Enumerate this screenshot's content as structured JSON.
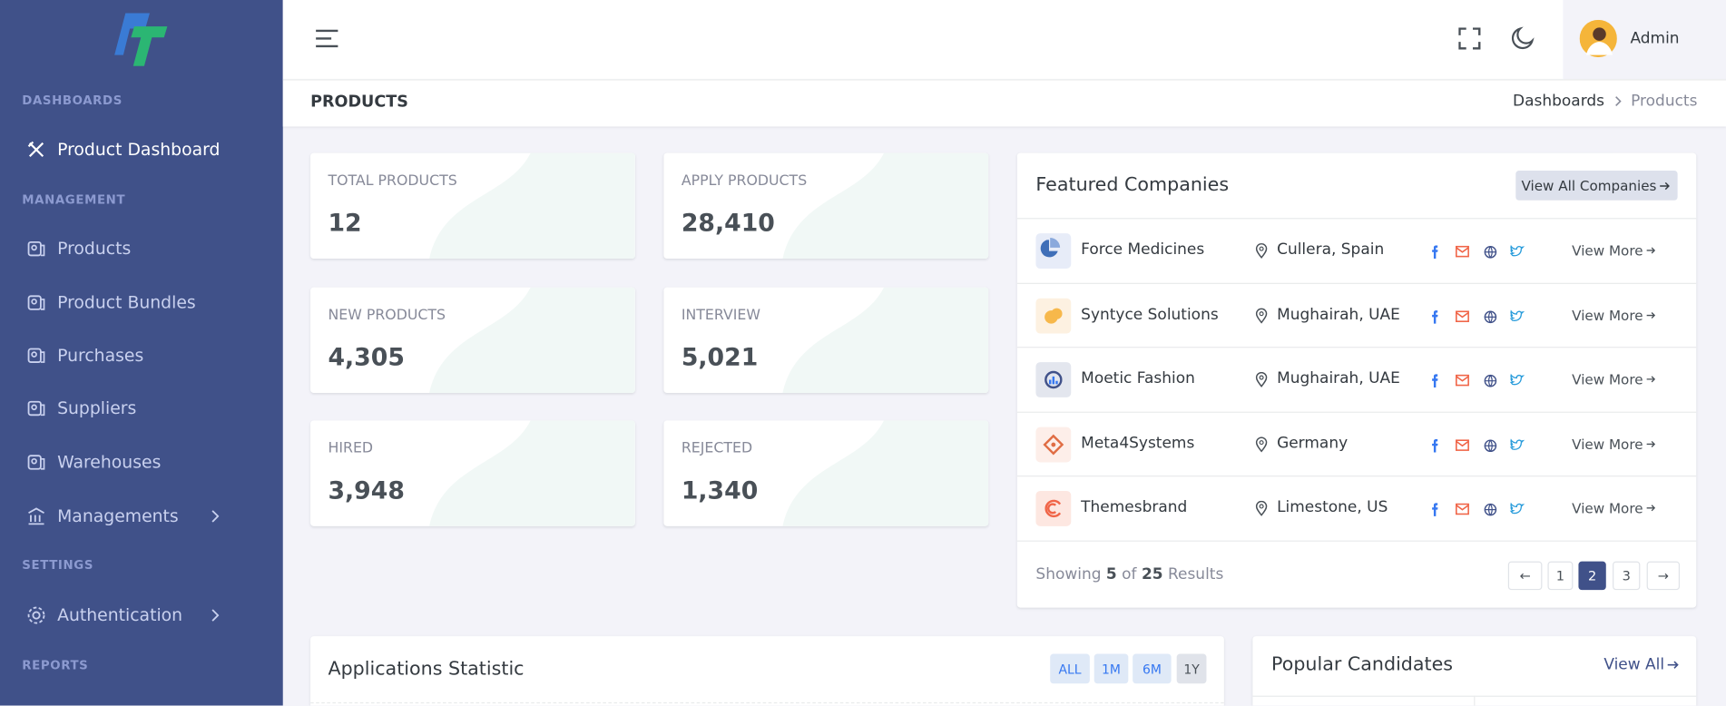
{
  "sidebar": {
    "sections": [
      "DASHBOARDS",
      "MANAGEMENT",
      "SETTINGS",
      "REPORTS"
    ],
    "items": [
      "Product Dashboard",
      "Products",
      "Product Bundles",
      "Purchases",
      "Suppliers",
      "Warehouses",
      "Managements",
      "Authentication"
    ]
  },
  "header": {
    "user": "Admin"
  },
  "page": {
    "title": "PRODUCTS",
    "breadcrumb": [
      "Dashboards",
      "Products"
    ]
  },
  "stats": [
    {
      "label": "TOTAL PRODUCTS",
      "value": "12"
    },
    {
      "label": "APPLY PRODUCTS",
      "value": "28,410"
    },
    {
      "label": "NEW PRODUCTS",
      "value": "4,305"
    },
    {
      "label": "INTERVIEW",
      "value": "5,021"
    },
    {
      "label": "HIRED",
      "value": "3,948"
    },
    {
      "label": "REJECTED",
      "value": "1,340"
    }
  ],
  "companies": {
    "title": "Featured Companies",
    "button": "View All Companies",
    "rows": [
      {
        "name": "Force Medicines",
        "location": "Cullera, Spain",
        "action": "View More"
      },
      {
        "name": "Syntyce Solutions",
        "location": "Mughairah, UAE",
        "action": "View More"
      },
      {
        "name": "Moetic Fashion",
        "location": "Mughairah, UAE",
        "action": "View More"
      },
      {
        "name": "Meta4Systems",
        "location": "Germany",
        "action": "View More"
      },
      {
        "name": "Themesbrand",
        "location": "Limestone, US",
        "action": "View More"
      }
    ],
    "showing": {
      "prefix": "Showing",
      "shown": "5",
      "of": "of",
      "total": "25",
      "suffix": "Results"
    },
    "pagination": {
      "prev": "←",
      "pages": [
        "1",
        "2",
        "3"
      ],
      "next": "→"
    }
  },
  "applications": {
    "title": "Applications Statistic",
    "filters": [
      "ALL",
      "1M",
      "6M",
      "1Y"
    ]
  },
  "candidates": {
    "title": "Popular Candidates",
    "link": "View All"
  }
}
